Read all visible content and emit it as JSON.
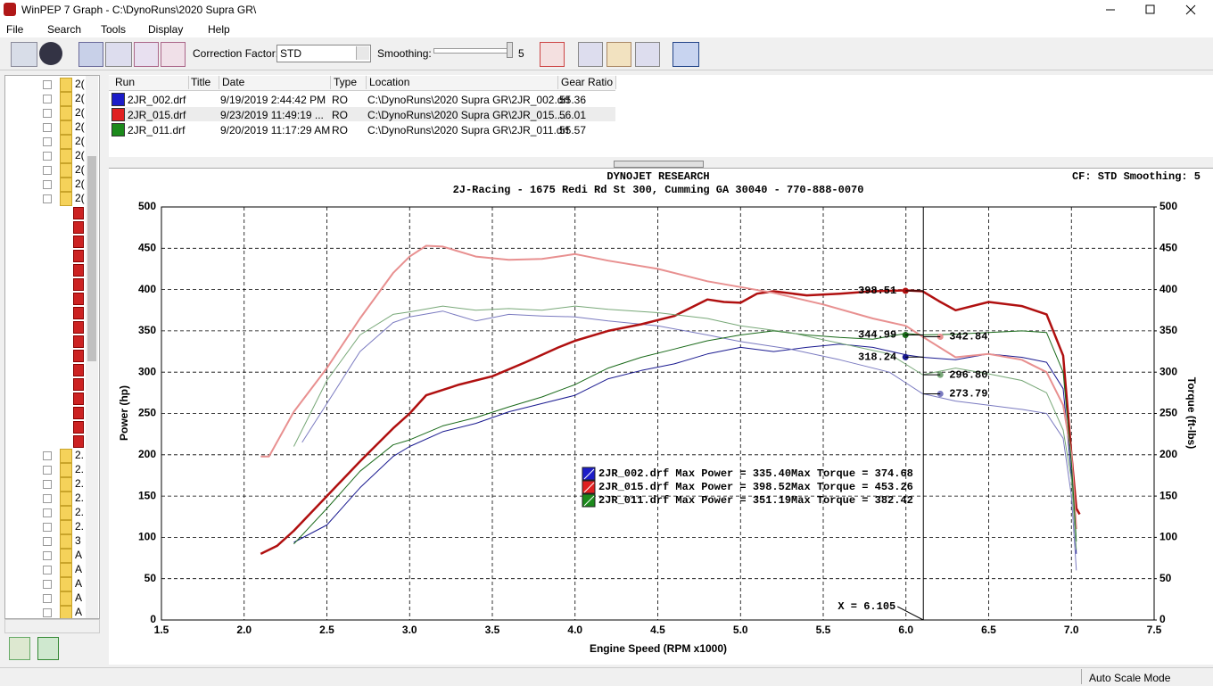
{
  "window": {
    "title": "WinPEP 7    Graph - C:\\DynoRuns\\2020 Supra GR\\"
  },
  "menu": [
    "File",
    "Search",
    "Tools",
    "Display",
    "Help"
  ],
  "toolbar": {
    "correction_factor_label": "Correction Factor:",
    "correction_factor": "STD",
    "smoothing_label": "Smoothing:",
    "smoothing": 5
  },
  "tree": {
    "top_items": [
      "2(",
      "2(",
      "2(",
      "2(",
      "2(",
      "2(",
      "2(",
      "2(",
      "2("
    ],
    "bottom_items": [
      "2.",
      "2.",
      "2.",
      "2.",
      "2.",
      "2.",
      "3",
      "A",
      "A",
      "A",
      "A",
      "A"
    ]
  },
  "runs_table": {
    "headers": [
      "Run",
      "Title",
      "Date",
      "Type",
      "Location",
      "Gear Ratio"
    ],
    "rows": [
      {
        "run": "2JR_002.drf",
        "date": "9/19/2019 2:44:42 PM",
        "type": "RO",
        "location": "C:\\DynoRuns\\2020 Supra GR\\2JR_002.drf",
        "gear_ratio": 55.36
      },
      {
        "run": "2JR_015.drf",
        "date": "9/23/2019 11:49:19 ...",
        "type": "RO",
        "location": "C:\\DynoRuns\\2020 Supra GR\\2JR_015....",
        "gear_ratio": 56.01
      },
      {
        "run": "2JR_011.drf",
        "date": "9/20/2019 11:17:29 AM",
        "type": "RO",
        "location": "C:\\DynoRuns\\2020 Supra GR\\2JR_011.drf",
        "gear_ratio": 55.57
      }
    ]
  },
  "chart_data": {
    "type": "line",
    "title": "DYNOJET RESEARCH",
    "subtitle": "2J-Racing - 1675 Redi Rd St 300, Cumming GA 30040 - 770-888-0070",
    "info": "CF: STD  Smoothing: 5",
    "x_label": "Engine Speed (RPM x1000)",
    "y_label": "Power (hp)",
    "y2_label": "Torque (ft-lbs)",
    "xlim": [
      1.5,
      7.5
    ],
    "xticks": [
      1.5,
      {
        "value": 2,
        "label": "2.0"
      },
      2.5,
      {
        "value": 3,
        "label": "3.0"
      },
      3.5,
      {
        "value": 4,
        "label": "4.0"
      },
      4.5,
      {
        "value": 5,
        "label": "5.0"
      },
      5.5,
      {
        "value": 6,
        "label": "6.0"
      },
      6.5,
      {
        "value": 7,
        "label": "7.0"
      },
      7.5
    ],
    "ylim": [
      0,
      500
    ],
    "yticks": [
      0,
      50,
      100,
      150,
      200,
      250,
      300,
      350,
      400,
      450,
      500
    ],
    "y2lim": [
      0,
      500
    ],
    "y2ticks": [
      0,
      50,
      100,
      150,
      200,
      250,
      300,
      350,
      400,
      450,
      500
    ],
    "grid": true,
    "cursor": {
      "x": 6.105,
      "label": "X = 6.105"
    },
    "legend": [
      {
        "label": "2JR_002.drf Max Power = 335.40Max Torque = 374.68",
        "color": "#1c1cc8"
      },
      {
        "label": "2JR_015.drf Max Power = 398.52Max Torque = 453.26",
        "color": "#e02020"
      },
      {
        "label": "2JR_011.drf Max Power = 351.19Max Torque = 382.42",
        "color": "#1c8a1c"
      }
    ],
    "series": [
      {
        "color": "#1a1a90",
        "line_width": 1,
        "x": [
          2.3,
          2.5,
          2.7,
          2.9,
          3.0,
          3.2,
          3.4,
          3.6,
          3.8,
          4.0,
          4.2,
          4.4,
          4.6,
          4.8,
          5.0,
          5.2,
          5.4,
          5.6,
          5.8,
          6.0,
          6.1,
          6.3,
          6.5,
          6.7,
          6.85,
          6.95,
          7.0,
          7.03
        ],
        "values": [
          94,
          115,
          160,
          198,
          210,
          228,
          238,
          252,
          262,
          272,
          292,
          302,
          310,
          322,
          330,
          325,
          330,
          334,
          330,
          321,
          318,
          315,
          322,
          318,
          312,
          280,
          175,
          80
        ],
        "cursor_value": 318.24
      },
      {
        "color": "#7a7ac0",
        "line_width": 1,
        "axis": "y2",
        "x": [
          2.35,
          2.5,
          2.7,
          2.9,
          3.0,
          3.2,
          3.4,
          3.6,
          3.8,
          4.0,
          4.2,
          4.5,
          4.8,
          5.0,
          5.3,
          5.6,
          5.9,
          6.1,
          6.3,
          6.5,
          6.7,
          6.85,
          6.95,
          7.0,
          7.03
        ],
        "values": [
          215,
          262,
          325,
          360,
          367,
          374,
          362,
          370,
          368,
          367,
          362,
          356,
          345,
          337,
          328,
          315,
          300,
          274,
          265,
          260,
          255,
          250,
          220,
          150,
          60
        ],
        "cursor_value": 273.79
      },
      {
        "color": "#b01010",
        "line_width": 2.5,
        "x": [
          2.1,
          2.2,
          2.3,
          2.5,
          2.7,
          2.9,
          3.0,
          3.1,
          3.3,
          3.5,
          3.7,
          3.9,
          4.0,
          4.2,
          4.4,
          4.6,
          4.8,
          4.9,
          5.0,
          5.1,
          5.2,
          5.4,
          5.6,
          5.8,
          6.0,
          6.1,
          6.2,
          6.3,
          6.5,
          6.7,
          6.85,
          6.95,
          7.0,
          7.03,
          7.05
        ],
        "values": [
          80,
          90,
          108,
          150,
          192,
          232,
          250,
          272,
          285,
          295,
          312,
          330,
          338,
          350,
          358,
          368,
          388,
          385,
          384,
          395,
          398,
          393,
          395,
          398,
          399,
          398,
          386,
          375,
          385,
          380,
          370,
          320,
          200,
          135,
          128
        ],
        "cursor_value": 398.51
      },
      {
        "color": "#e89090",
        "line_width": 2,
        "axis": "y2",
        "x": [
          2.1,
          2.15,
          2.3,
          2.5,
          2.7,
          2.9,
          3.0,
          3.1,
          3.2,
          3.4,
          3.6,
          3.8,
          4.0,
          4.2,
          4.5,
          4.8,
          5.0,
          5.2,
          5.5,
          5.8,
          6.0,
          6.1,
          6.3,
          6.5,
          6.7,
          6.85,
          6.95,
          7.0,
          7.03
        ],
        "values": [
          198,
          198,
          252,
          305,
          365,
          420,
          440,
          453,
          452,
          440,
          436,
          437,
          443,
          435,
          425,
          410,
          403,
          396,
          382,
          365,
          356,
          343,
          318,
          322,
          315,
          300,
          260,
          200,
          110
        ],
        "cursor_value": 342.84
      },
      {
        "color": "#1a6a1a",
        "line_width": 1,
        "x": [
          2.3,
          2.5,
          2.7,
          2.9,
          3.0,
          3.2,
          3.4,
          3.6,
          3.8,
          4.0,
          4.2,
          4.4,
          4.6,
          4.8,
          5.0,
          5.2,
          5.4,
          5.6,
          5.8,
          6.0,
          6.1,
          6.3,
          6.5,
          6.7,
          6.85,
          6.95,
          7.0,
          7.03
        ],
        "values": [
          92,
          135,
          180,
          212,
          218,
          235,
          245,
          258,
          270,
          285,
          305,
          318,
          328,
          338,
          345,
          350,
          345,
          342,
          340,
          347,
          345,
          346,
          348,
          350,
          348,
          300,
          190,
          95
        ],
        "cursor_value": 344.99
      },
      {
        "color": "#78a878",
        "line_width": 1,
        "axis": "y2",
        "x": [
          2.3,
          2.5,
          2.7,
          2.9,
          3.0,
          3.2,
          3.4,
          3.6,
          3.8,
          4.0,
          4.2,
          4.5,
          4.8,
          5.0,
          5.3,
          5.6,
          5.9,
          6.1,
          6.3,
          6.5,
          6.7,
          6.85,
          6.95,
          7.0,
          7.03
        ],
        "values": [
          210,
          290,
          345,
          370,
          373,
          380,
          375,
          377,
          375,
          380,
          376,
          372,
          365,
          356,
          348,
          335,
          322,
          297,
          305,
          298,
          290,
          275,
          230,
          170,
          85
        ],
        "cursor_value": {
          "value": 296.8,
          "label": "296.80"
        }
      }
    ]
  },
  "status_bar": {
    "mode": "Auto Scale Mode"
  }
}
